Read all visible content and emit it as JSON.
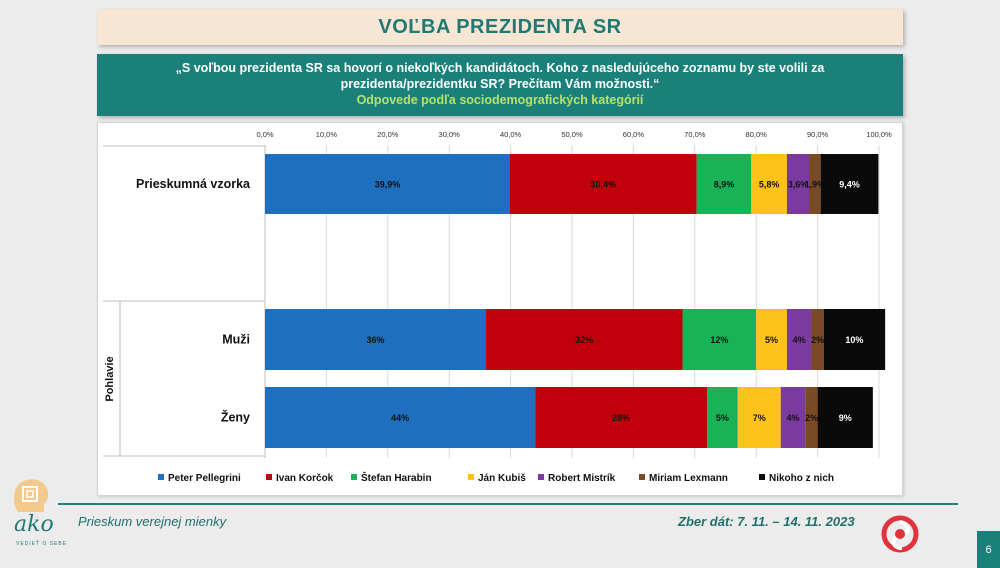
{
  "title": "VOĽBA PREZIDENTA SR",
  "question": {
    "line1": "„S voľbou prezidenta SR sa hovorí o niekoľkých kandidátoch. Koho z nasledujúceho zoznamu by ste volili za",
    "line2": "prezidenta/prezidentku SR? Prečítam Vám možnosti.“",
    "subtitle": "Odpovede podľa sociodemografických kategórií"
  },
  "footer": {
    "left": "Prieskum verejnej mienky",
    "right": "Zber dát: 7. 11. – 14. 11. 2023",
    "logo_text": "ako",
    "logo_tagline": "VEDIEŤ O SEBE",
    "page_number": "6"
  },
  "colors": {
    "Peter Pellegrini": "#1f6fbf",
    "Ivan Korčok": "#c0000b",
    "Štefan Harabin": "#17b356",
    "Ján Kubiš": "#ffc21a",
    "Robert Mistrík": "#7b3a9e",
    "Miriam Lexmann": "#7a4a26",
    "Nikoho z nich": "#0a0a0a"
  },
  "chart_data": {
    "type": "bar",
    "orientation": "horizontal-stacked-100",
    "xlim": [
      0,
      100
    ],
    "xticks": [
      "0,0%",
      "10,0%",
      "20,0%",
      "30,0%",
      "40,0%",
      "50,0%",
      "60,0%",
      "70,0%",
      "80,0%",
      "90,0%",
      "100,0%"
    ],
    "group_label": "Pohlavie",
    "legend_position": "bottom",
    "grid": true,
    "series_names": [
      "Peter Pellegrini",
      "Ivan Korčok",
      "Štefan Harabin",
      "Ján Kubiš",
      "Robert Mistrík",
      "Miriam Lexmann",
      "Nikoho z nich"
    ],
    "rows": [
      {
        "category": "Prieskumná vzorka",
        "values": [
          39.9,
          30.4,
          8.9,
          5.8,
          3.6,
          1.9,
          9.4
        ],
        "labels": [
          "39,9%",
          "30,4%",
          "8,9%",
          "5,8%",
          "3,6%",
          "1,9%",
          "9,4%"
        ]
      },
      {
        "category": "Muži",
        "values": [
          36,
          32,
          12,
          5,
          4,
          2,
          10
        ],
        "labels": [
          "36%",
          "32%",
          "12%",
          "5%",
          "4%",
          "2%",
          "10%"
        ]
      },
      {
        "category": "Ženy",
        "values": [
          44,
          28,
          5,
          7,
          4,
          2,
          9
        ],
        "labels": [
          "44%",
          "28%",
          "5%",
          "7%",
          "4%",
          "2%",
          "9%"
        ]
      }
    ]
  }
}
